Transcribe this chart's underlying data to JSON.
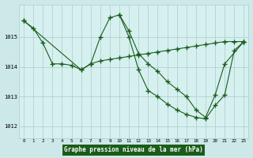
{
  "title": "Graphe pression niveau de la mer (hPa)",
  "fig_bg": "#cde8e8",
  "plot_bg": "#d6f0f0",
  "line_color": "#1a5c1a",
  "grid_color": "#aacccc",
  "label_bg": "#1a5c1a",
  "label_fg": "#ffffff",
  "ylim": [
    1011.6,
    1016.1
  ],
  "yticks": [
    1012,
    1013,
    1014,
    1015
  ],
  "xticks": [
    0,
    1,
    2,
    3,
    4,
    5,
    6,
    7,
    8,
    9,
    10,
    11,
    12,
    13,
    14,
    15,
    16,
    17,
    18,
    19,
    20,
    21,
    22,
    23
  ],
  "series1_x": [
    0,
    1,
    2,
    3,
    4,
    5,
    6,
    7,
    8,
    9,
    10,
    11,
    12,
    13,
    14,
    15,
    16,
    17,
    18,
    19,
    20,
    21,
    22,
    23
  ],
  "series1_y": [
    1015.55,
    1015.3,
    1014.8,
    1014.1,
    1014.1,
    1014.05,
    1013.9,
    1014.1,
    1014.2,
    1014.25,
    1014.3,
    1014.35,
    1014.4,
    1014.45,
    1014.5,
    1014.55,
    1014.6,
    1014.65,
    1014.7,
    1014.75,
    1014.8,
    1014.85,
    1014.85,
    1014.85
  ],
  "series2_x": [
    0,
    6,
    7,
    8,
    9,
    10,
    11,
    12,
    13,
    14,
    15,
    16,
    17,
    18,
    19,
    20,
    21,
    23
  ],
  "series2_y": [
    1015.55,
    1013.9,
    1014.1,
    1015.0,
    1015.65,
    1015.75,
    1015.2,
    1014.45,
    1014.1,
    1013.85,
    1013.5,
    1013.25,
    1013.0,
    1012.55,
    1012.3,
    1013.05,
    1014.1,
    1014.85
  ],
  "series3_x": [
    10,
    11,
    12,
    13,
    14,
    15,
    16,
    17,
    18,
    19,
    20,
    21,
    22,
    23
  ],
  "series3_y": [
    1015.75,
    1015.0,
    1013.9,
    1013.2,
    1013.0,
    1012.75,
    1012.55,
    1012.4,
    1012.3,
    1012.25,
    1012.7,
    1013.05,
    1014.55,
    1014.85
  ]
}
